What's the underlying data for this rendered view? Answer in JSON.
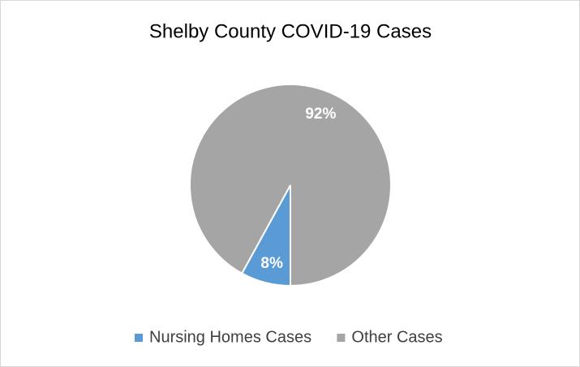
{
  "chart_data": {
    "type": "pie",
    "title": "Shelby County COVID-19 Cases",
    "categories": [
      "Nursing Homes Cases",
      "Other Cases"
    ],
    "values": [
      8,
      92
    ],
    "value_labels": [
      "8%",
      "92%"
    ],
    "colors": [
      "#5b9bd5",
      "#a5a5a5"
    ],
    "legend": "bottom"
  }
}
